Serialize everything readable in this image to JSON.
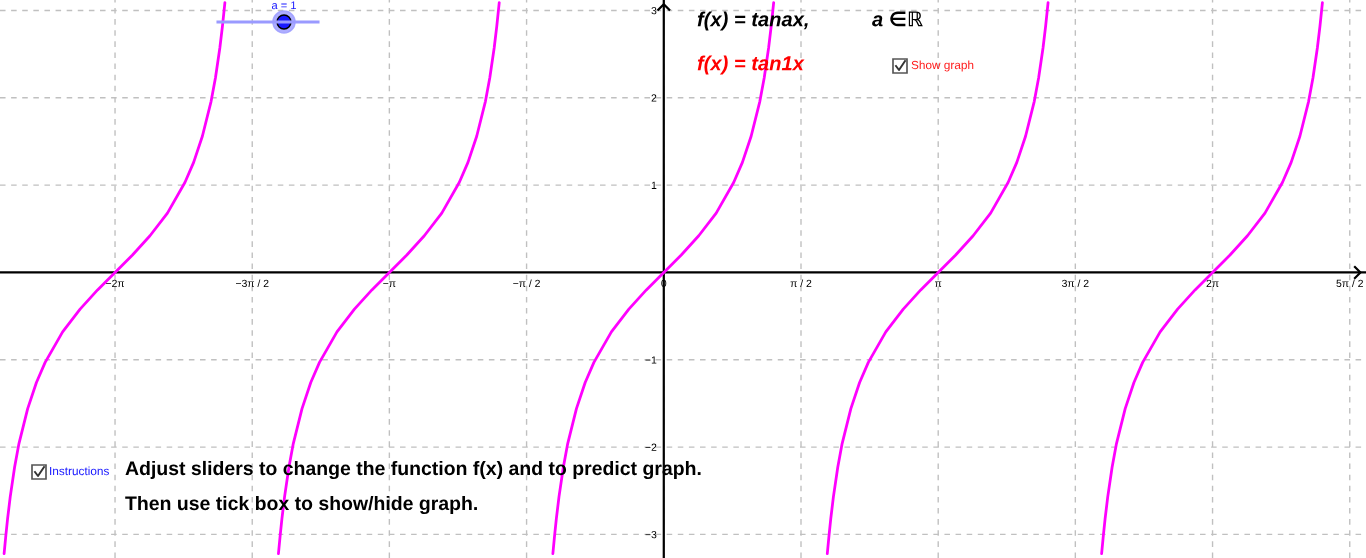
{
  "chart_data": {
    "type": "line",
    "series": [
      {
        "color": "#ff00ff",
        "x": [
          -7.553,
          -7.533,
          -7.513,
          -7.483,
          -7.433,
          -7.383,
          -7.283,
          -7.183,
          -7.083,
          -6.883,
          -6.683,
          -6.483,
          -6.283,
          -6.083,
          -5.883,
          -5.683,
          -5.483,
          -5.383,
          -5.283,
          -5.183,
          -5.133,
          -5.083,
          -5.053,
          -5.025,
          -4.712,
          -4.412,
          -4.392,
          -4.372,
          -4.342,
          -4.292,
          -4.242,
          -4.142,
          -4.042,
          -3.942,
          -3.742,
          -3.542,
          -3.342,
          -3.142,
          -2.942,
          -2.742,
          -2.542,
          -2.342,
          -2.242,
          -2.142,
          -2.042,
          -1.992,
          -1.942,
          -1.912,
          -1.884,
          -1.571,
          -1.27,
          -1.25,
          -1.23,
          -1.2,
          -1.15,
          -1.1,
          -1.0,
          -0.9,
          -0.8,
          -0.6,
          -0.4,
          -0.2,
          0,
          0.2,
          0.4,
          0.6,
          0.8,
          0.9,
          1.0,
          1.1,
          1.15,
          1.2,
          1.23,
          1.258,
          1.571,
          1.872,
          1.892,
          1.912,
          1.942,
          1.992,
          2.042,
          2.142,
          2.242,
          2.342,
          2.542,
          2.742,
          2.942,
          3.142,
          3.342,
          3.542,
          3.742,
          3.942,
          4.042,
          4.142,
          4.242,
          4.292,
          4.342,
          4.372,
          4.4,
          4.712,
          5.013,
          5.033,
          5.053,
          5.083,
          5.133,
          5.183,
          5.283,
          5.383,
          5.483,
          5.683,
          5.883,
          6.083,
          6.283,
          6.483,
          6.683,
          6.883,
          7.083,
          7.183,
          7.283,
          7.383,
          7.433,
          7.483,
          7.513,
          7.541
        ],
        "values": [
          -3.22,
          -3.01,
          -2.82,
          -2.57,
          -2.23,
          -1.96,
          -1.56,
          -1.26,
          -1.03,
          -0.68,
          -0.42,
          -0.2,
          0,
          0.2,
          0.42,
          0.68,
          1.03,
          1.26,
          1.56,
          1.96,
          2.23,
          2.57,
          2.82,
          3.09,
          null,
          -3.22,
          -3.01,
          -2.82,
          -2.57,
          -2.23,
          -1.96,
          -1.56,
          -1.26,
          -1.03,
          -0.68,
          -0.42,
          -0.2,
          0,
          0.2,
          0.42,
          0.68,
          1.03,
          1.26,
          1.56,
          1.96,
          2.23,
          2.57,
          2.82,
          3.09,
          null,
          -3.22,
          -3.01,
          -2.82,
          -2.57,
          -2.23,
          -1.96,
          -1.56,
          -1.26,
          -1.03,
          -0.68,
          -0.42,
          -0.2,
          0,
          0.2,
          0.42,
          0.68,
          1.03,
          1.26,
          1.56,
          1.96,
          2.23,
          2.57,
          2.82,
          3.09,
          null,
          -3.22,
          -3.01,
          -2.82,
          -2.57,
          -2.23,
          -1.96,
          -1.56,
          -1.26,
          -1.03,
          -0.68,
          -0.42,
          -0.2,
          0,
          0.2,
          0.42,
          0.68,
          1.03,
          1.26,
          1.56,
          1.96,
          2.23,
          2.57,
          2.82,
          3.09,
          null,
          -3.22,
          -3.01,
          -2.82,
          -2.57,
          -2.23,
          -1.96,
          -1.56,
          -1.26,
          -1.03,
          -0.68,
          -0.42,
          -0.2,
          0,
          0.2,
          0.42,
          0.68,
          1.03,
          1.26,
          1.56,
          1.96,
          2.23,
          2.57,
          2.82,
          3.09
        ]
      }
    ],
    "xlim": [
      -7.6,
      8.04
    ],
    "ylim": [
      -3.27,
      3.12
    ],
    "xticks": [
      {
        "value": -6.283,
        "label": "−2π"
      },
      {
        "value": -4.712,
        "label": "−3π / 2"
      },
      {
        "value": -3.142,
        "label": "−π"
      },
      {
        "value": -1.571,
        "label": "−π / 2"
      },
      0,
      {
        "value": 1.571,
        "label": "π / 2"
      },
      {
        "value": 3.142,
        "label": "π"
      },
      {
        "value": 4.712,
        "label": "3π / 2"
      },
      {
        "value": 6.283,
        "label": "2π"
      },
      {
        "value": 7.854,
        "label": "5π / 2"
      }
    ],
    "yticks": [
      {
        "value": -3,
        "label": "−3"
      },
      {
        "value": -2,
        "label": "−2"
      },
      {
        "value": -1,
        "label": "−1"
      },
      1,
      2,
      3
    ],
    "grid": true,
    "annotations": [
      "f(x) = tanax,",
      "a ∈ℝ",
      "f(x) = tan1x",
      "Show graph",
      "a = 1",
      "Instructions",
      "Adjust sliders to change the function f(x) and to predict graph.",
      "Then use tick box to show/hide graph."
    ]
  }
}
